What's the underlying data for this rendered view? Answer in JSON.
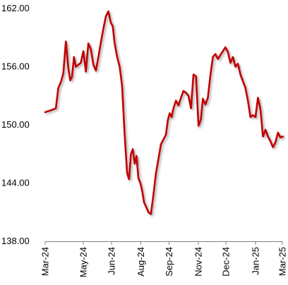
{
  "chart_data": {
    "type": "line",
    "title": "",
    "xlabel": "",
    "ylabel": "",
    "ylim": [
      138,
      162
    ],
    "yticks": [
      "162.00",
      "156.00",
      "150.00",
      "144.00",
      "138.00"
    ],
    "ytick_values": [
      162,
      156,
      150,
      144,
      138
    ],
    "xticks": [
      "Mar-24",
      "May-24",
      "Jun-24",
      "Aug-24",
      "Sep-24",
      "Nov-24",
      "Dec-24",
      "Jan-25",
      "Mar-25"
    ],
    "xtick_dates": [
      "2024-03-01",
      "2024-05-01",
      "2024-06-15",
      "2024-08-01",
      "2024-09-15",
      "2024-11-01",
      "2024-12-15",
      "2025-01-31",
      "2025-03-15"
    ],
    "grid": false,
    "legend": "none",
    "line_color": "#C00000",
    "series": [
      {
        "x": [
          "2024-03-01",
          "2024-03-05",
          "2024-03-10",
          "2024-03-14",
          "2024-03-18",
          "2024-03-22",
          "2024-03-26",
          "2024-03-30",
          "2024-04-03",
          "2024-04-07",
          "2024-04-10",
          "2024-04-13",
          "2024-04-16",
          "2024-04-19",
          "2024-04-23",
          "2024-04-27",
          "2024-05-01",
          "2024-05-05",
          "2024-05-09",
          "2024-05-13",
          "2024-05-17",
          "2024-05-21",
          "2024-05-25",
          "2024-05-29",
          "2024-06-02",
          "2024-06-06",
          "2024-06-10",
          "2024-06-14",
          "2024-06-17",
          "2024-06-20",
          "2024-06-24",
          "2024-06-28",
          "2024-07-02",
          "2024-07-06",
          "2024-07-10",
          "2024-07-13",
          "2024-07-16",
          "2024-07-19",
          "2024-07-22",
          "2024-07-25",
          "2024-07-28",
          "2024-07-31",
          "2024-08-03",
          "2024-08-06",
          "2024-08-09",
          "2024-08-13",
          "2024-08-17",
          "2024-08-21",
          "2024-08-25",
          "2024-08-29",
          "2024-09-02",
          "2024-09-06",
          "2024-09-10",
          "2024-09-13",
          "2024-09-16",
          "2024-09-19",
          "2024-09-22",
          "2024-09-26",
          "2024-09-30",
          "2024-10-04",
          "2024-10-08",
          "2024-10-12",
          "2024-10-16",
          "2024-10-20",
          "2024-10-24",
          "2024-10-28",
          "2024-11-01",
          "2024-11-05",
          "2024-11-08",
          "2024-11-12",
          "2024-11-16",
          "2024-11-20",
          "2024-11-24",
          "2024-11-28",
          "2024-12-02",
          "2024-12-06",
          "2024-12-10",
          "2024-12-14",
          "2024-12-18",
          "2024-12-22",
          "2024-12-26",
          "2024-12-30",
          "2025-01-03",
          "2025-01-07",
          "2025-01-11",
          "2025-01-15",
          "2025-01-19",
          "2025-01-23",
          "2025-01-27",
          "2025-01-31",
          "2025-02-04",
          "2025-02-08",
          "2025-02-12",
          "2025-02-16",
          "2025-02-20",
          "2025-02-24",
          "2025-02-28",
          "2025-03-04",
          "2025-03-08",
          "2025-03-12",
          "2025-03-16"
        ],
        "y": [
          151.3,
          151.4,
          151.5,
          151.6,
          151.7,
          153.8,
          154.4,
          155.3,
          158.6,
          155.8,
          154.6,
          155.0,
          157.0,
          156.0,
          156.2,
          156.4,
          157.6,
          155.5,
          158.4,
          157.8,
          156.2,
          155.6,
          157.0,
          158.5,
          159.9,
          161.2,
          161.7,
          160.5,
          160.2,
          158.4,
          157.0,
          156.0,
          154.0,
          149.0,
          145.0,
          144.4,
          147.0,
          147.5,
          146.0,
          146.8,
          144.5,
          144.0,
          143.2,
          142.0,
          141.6,
          141.0,
          140.8,
          142.8,
          145.0,
          146.5,
          148.0,
          148.5,
          149.0,
          150.5,
          151.2,
          150.8,
          151.7,
          152.5,
          152.0,
          152.8,
          153.5,
          153.3,
          153.0,
          151.7,
          155.2,
          155.0,
          149.9,
          150.6,
          152.7,
          152.1,
          152.8,
          155.1,
          157.0,
          157.3,
          156.8,
          157.2,
          157.6,
          158.0,
          157.5,
          156.4,
          157.0,
          156.0,
          156.3,
          155.2,
          154.5,
          153.8,
          152.5,
          150.8,
          151.0,
          150.8,
          152.8,
          151.6,
          148.8,
          149.5,
          148.8,
          148.3,
          147.7,
          148.2,
          149.2,
          148.7,
          148.8
        ]
      }
    ]
  }
}
